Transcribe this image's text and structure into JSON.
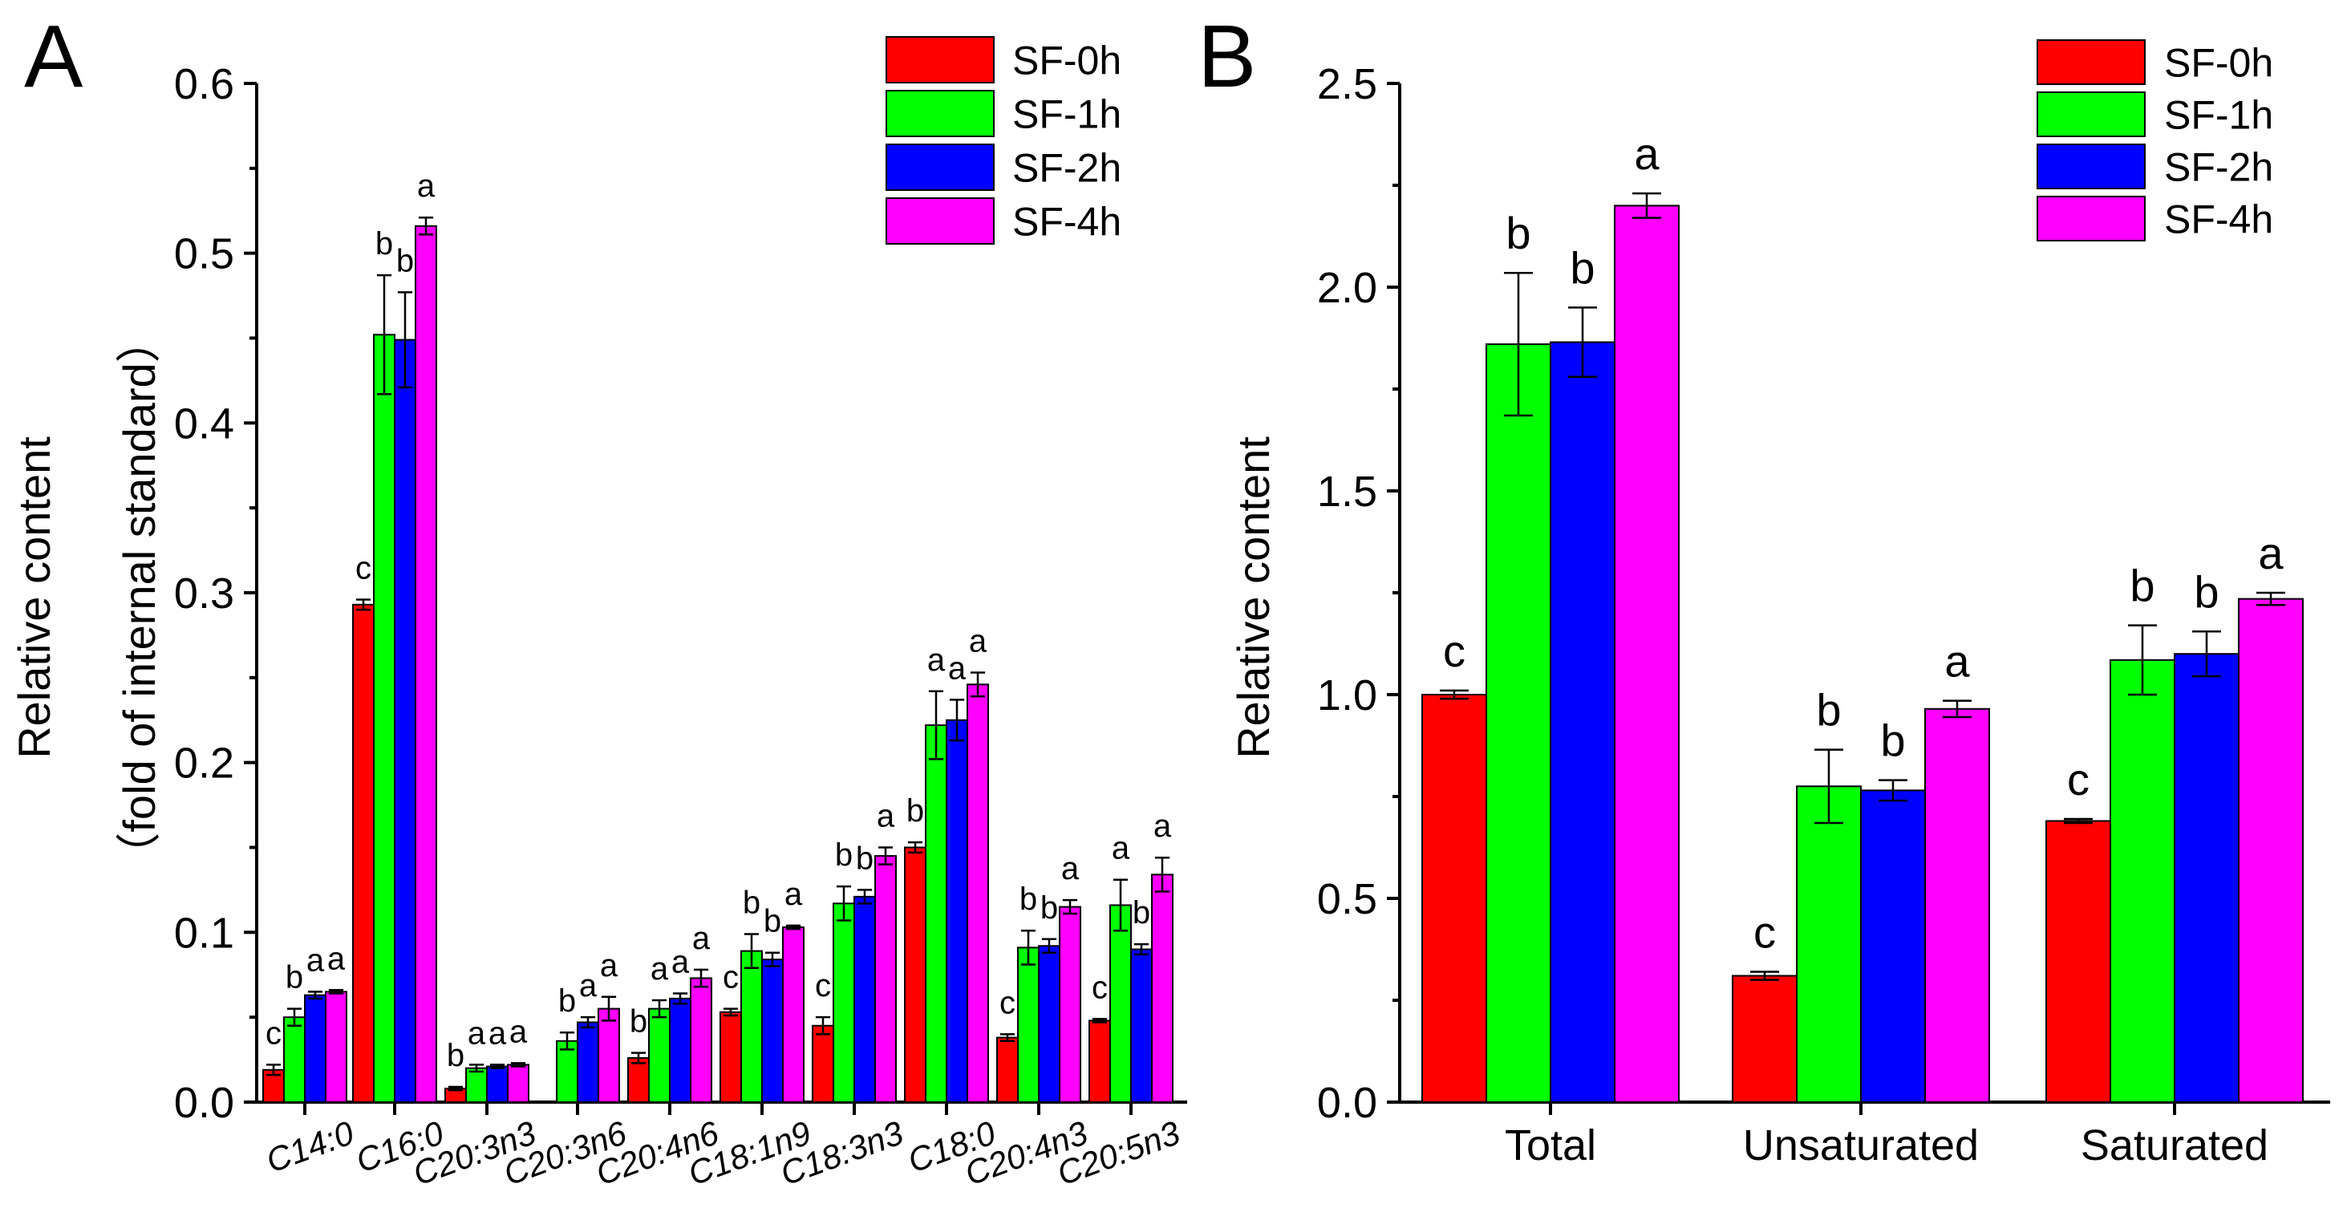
{
  "colors": {
    "SF-0h": "#ff0000",
    "SF-1h": "#00ff00",
    "SF-2h": "#0000ff",
    "SF-4h": "#ff00ff"
  },
  "chart_data": [
    {
      "type": "bar",
      "panel": "A",
      "title": "",
      "xlabel": "",
      "ylabel": "Relative content",
      "ylabel2": "（fold of internal standard）",
      "ylim": [
        0,
        0.6
      ],
      "yticks": [
        "0.0",
        "0.1",
        "0.2",
        "0.3",
        "0.4",
        "0.5",
        "0.6"
      ],
      "legend": [
        "SF-0h",
        "SF-1h",
        "SF-2h",
        "SF-4h"
      ],
      "legend_position": "top-right",
      "categories": [
        "C14:0",
        "C16:0",
        "C20:3n3",
        "C20:3n6",
        "C20:4n6",
        "C18:1n9",
        "C18:3n3",
        "C18:0",
        "C20:4n3",
        "C20:5n3"
      ],
      "series": [
        {
          "name": "SF-0h",
          "values": [
            0.019,
            0.293,
            0.008,
            0.0,
            0.026,
            0.053,
            0.045,
            0.15,
            0.038,
            0.048
          ],
          "errors": [
            0.003,
            0.003,
            0.001,
            0.0,
            0.003,
            0.002,
            0.005,
            0.003,
            0.002,
            0.001
          ],
          "labels": [
            "c",
            "c",
            "b",
            "",
            "b",
            "c",
            "c",
            "b",
            "c",
            "c"
          ]
        },
        {
          "name": "SF-1h",
          "values": [
            0.05,
            0.452,
            0.02,
            0.036,
            0.055,
            0.089,
            0.117,
            0.222,
            0.091,
            0.116
          ],
          "errors": [
            0.005,
            0.035,
            0.002,
            0.005,
            0.005,
            0.01,
            0.01,
            0.02,
            0.01,
            0.015
          ],
          "labels": [
            "b",
            "b",
            "a",
            "b",
            "a",
            "b",
            "b",
            "a",
            "b",
            "a"
          ]
        },
        {
          "name": "SF-2h",
          "values": [
            0.063,
            0.449,
            0.021,
            0.047,
            0.061,
            0.084,
            0.121,
            0.225,
            0.092,
            0.09
          ],
          "errors": [
            0.002,
            0.028,
            0.001,
            0.003,
            0.003,
            0.004,
            0.004,
            0.012,
            0.004,
            0.003
          ],
          "labels": [
            "a",
            "b",
            "a",
            "a",
            "a",
            "b",
            "b",
            "a",
            "b",
            "b"
          ]
        },
        {
          "name": "SF-4h",
          "values": [
            0.065,
            0.516,
            0.022,
            0.055,
            0.073,
            0.103,
            0.145,
            0.246,
            0.115,
            0.134
          ],
          "errors": [
            0.001,
            0.005,
            0.001,
            0.007,
            0.005,
            0.001,
            0.005,
            0.007,
            0.004,
            0.01
          ],
          "labels": [
            "a",
            "a",
            "a",
            "a",
            "a",
            "a",
            "a",
            "a",
            "a",
            "a"
          ]
        }
      ]
    },
    {
      "type": "bar",
      "panel": "B",
      "title": "",
      "xlabel": "",
      "ylabel": "Relative content",
      "ylim": [
        0,
        2.5
      ],
      "yticks": [
        "0.0",
        "0.5",
        "1.0",
        "1.5",
        "2.0",
        "2.5"
      ],
      "legend": [
        "SF-0h",
        "SF-1h",
        "SF-2h",
        "SF-4h"
      ],
      "legend_position": "top-right",
      "categories": [
        "Total",
        "Unsaturated",
        "Saturated"
      ],
      "series": [
        {
          "name": "SF-0h",
          "values": [
            1.0,
            0.31,
            0.69
          ],
          "errors": [
            0.01,
            0.01,
            0.005
          ],
          "labels": [
            "c",
            "c",
            "c"
          ]
        },
        {
          "name": "SF-1h",
          "values": [
            1.86,
            0.775,
            1.085
          ],
          "errors": [
            0.175,
            0.09,
            0.085
          ],
          "labels": [
            "b",
            "b",
            "b"
          ]
        },
        {
          "name": "SF-2h",
          "values": [
            1.865,
            0.765,
            1.1
          ],
          "errors": [
            0.085,
            0.025,
            0.055
          ],
          "labels": [
            "b",
            "b",
            "b"
          ]
        },
        {
          "name": "SF-4h",
          "values": [
            2.2,
            0.965,
            1.235
          ],
          "errors": [
            0.03,
            0.02,
            0.015
          ],
          "labels": [
            "a",
            "a",
            "a"
          ]
        }
      ]
    }
  ]
}
